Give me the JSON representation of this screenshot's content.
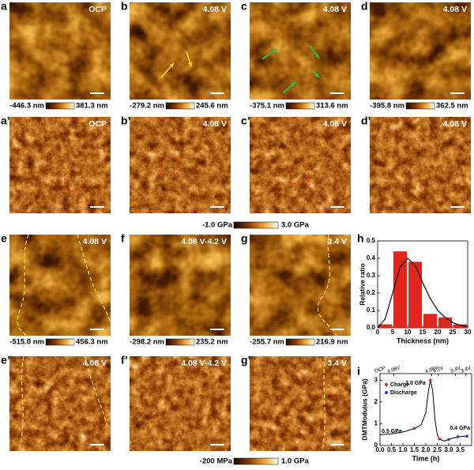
{
  "image_panels": [
    {
      "label": "a",
      "condition": "OCP",
      "scale_min": "-446.3 nm",
      "scale_max": "381.3 nm"
    },
    {
      "label": "b",
      "condition": "4.08 V",
      "scale_min": "-279.2 nm",
      "scale_max": "245.6 nm"
    },
    {
      "label": "c",
      "condition": "4.08 V",
      "scale_min": "-375.1 nm",
      "scale_max": "313.6 nm"
    },
    {
      "label": "d",
      "condition": "4.08 V",
      "scale_min": "-395.8 nm",
      "scale_max": "362.5 nm"
    },
    {
      "label": "a’",
      "condition": "OCP"
    },
    {
      "label": "b’",
      "condition": "4.08 V"
    },
    {
      "label": "c’",
      "condition": "4.08 V"
    },
    {
      "label": "d’",
      "condition": "4.08 V"
    },
    {
      "label": "e",
      "condition": "4.08 V",
      "scale_min": "-515.0 nm",
      "scale_max": "456.3 nm"
    },
    {
      "label": "f",
      "condition": "4.08 V-4.2 V",
      "scale_min": "-298.2 nm",
      "scale_max": "235.2 nm"
    },
    {
      "label": "g",
      "condition": "3.4 V",
      "scale_min": "-255.7 nm",
      "scale_max": "216.9 nm"
    },
    {
      "label": "e’",
      "condition": "4.08 V"
    },
    {
      "label": "f’",
      "condition": "4.08 V-4.2 V"
    },
    {
      "label": "g’",
      "condition": "3.4 V"
    }
  ],
  "modulus_scale_1": {
    "min": "-1.0 GPa",
    "max": "3.0 GPa"
  },
  "modulus_scale_2": {
    "min": "-200 MPa",
    "max": "1.0 GPa"
  },
  "chart_data": [
    {
      "type": "histogram",
      "panel_label": "h",
      "xlabel": "Thickness (nm)",
      "ylabel": "Relative ratio",
      "bins": [
        0,
        5,
        10,
        15,
        20,
        25,
        30
      ],
      "values": [
        0.02,
        0.44,
        0.38,
        0.08,
        0.06,
        0.02
      ],
      "color": "#e0261d",
      "fit": {
        "x": [
          0,
          2.5,
          5,
          7.5,
          10,
          12.5,
          15,
          17.5,
          20,
          22.5,
          25,
          27.5,
          30
        ],
        "values": [
          0,
          0.05,
          0.2,
          0.35,
          0.4,
          0.36,
          0.26,
          0.17,
          0.1,
          0.06,
          0.03,
          0.015,
          0.008
        ],
        "color": "#000000"
      },
      "xlim": [
        0,
        30
      ],
      "ylim": [
        0,
        0.5
      ],
      "xticks": [
        0,
        5,
        10,
        15,
        20,
        25,
        30
      ],
      "yticks": [
        {
          "value": 0,
          "label": "0.0"
        },
        0.1,
        0.2,
        0.3,
        0.4,
        0.5
      ]
    },
    {
      "type": "line",
      "panel_label": "i",
      "xlabel": "Time (h)",
      "ylabel": "DMTModulus (GPa)",
      "line": {
        "x": [
          0,
          0.3,
          0.6,
          0.9,
          1.2,
          1.5,
          1.8,
          2.0,
          2.1,
          2.2,
          2.3,
          2.4,
          2.5,
          2.6,
          2.8,
          3.0,
          3.2,
          3.4,
          3.6,
          3.8
        ],
        "values": [
          0.5,
          0.52,
          0.55,
          0.6,
          0.68,
          0.78,
          0.95,
          1.5,
          2.4,
          3.0,
          2.5,
          1.2,
          0.5,
          0.3,
          0.2,
          0.28,
          0.35,
          0.4,
          0.42,
          0.43
        ],
        "color": "#000000"
      },
      "series": [
        {
          "name": "Charge",
          "color": "#e0261d",
          "x": [
            1.5,
            2.2,
            2.6
          ],
          "values": [
            0.78,
            3.0,
            0.3
          ]
        },
        {
          "name": "Discharge",
          "color": "#2b3fc9",
          "x": [
            3.0,
            3.4,
            3.8
          ],
          "values": [
            0.28,
            0.4,
            0.43
          ]
        }
      ],
      "annotations": [
        {
          "text": "0.5 GPa",
          "color": "#000000"
        },
        {
          "text": "3.0 GPa",
          "color": "#e0261d"
        },
        {
          "text": "0.4 GPa",
          "color": "#2b3fc9"
        }
      ],
      "xlim": [
        0,
        4
      ],
      "ylim": [
        0,
        3.3
      ],
      "xticks": [
        {
          "value": 0,
          "label": "0.0"
        },
        0.5,
        {
          "value": 1,
          "label": "1.0"
        },
        1.5,
        {
          "value": 2,
          "label": "2.0"
        },
        2.5,
        {
          "value": 3,
          "label": "3.0"
        },
        3.5
      ],
      "yticks": [
        0,
        1,
        2,
        3
      ],
      "x2ticks": [
        {
          "value": 0,
          "label": "OCP"
        },
        {
          "value": 0.6,
          "label": "4.08V"
        },
        {
          "value": 2.25,
          "label": "4.08V"
        },
        {
          "value": 2.55,
          "label": "4.2V"
        },
        {
          "value": 3.3,
          "label": "3.4V"
        },
        {
          "value": 3.75,
          "label": "3.4V"
        }
      ]
    }
  ]
}
